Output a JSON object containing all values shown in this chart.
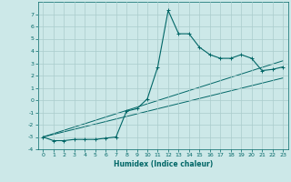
{
  "xlabel": "Humidex (Indice chaleur)",
  "background_color": "#cce8e8",
  "grid_color": "#aacccc",
  "line_color": "#006666",
  "xlim": [
    -0.5,
    23.5
  ],
  "ylim": [
    -4,
    8
  ],
  "yticks": [
    -4,
    -3,
    -2,
    -1,
    0,
    1,
    2,
    3,
    4,
    5,
    6,
    7
  ],
  "xticks": [
    0,
    1,
    2,
    3,
    4,
    5,
    6,
    7,
    8,
    9,
    10,
    11,
    12,
    13,
    14,
    15,
    16,
    17,
    18,
    19,
    20,
    21,
    22,
    23
  ],
  "main_x": [
    0,
    1,
    2,
    3,
    4,
    5,
    6,
    7,
    8,
    9,
    10,
    11,
    12,
    13,
    14,
    15,
    16,
    17,
    18,
    19,
    20,
    21,
    22,
    23
  ],
  "main_y": [
    -3.0,
    -3.3,
    -3.3,
    -3.2,
    -3.2,
    -3.2,
    -3.1,
    -3.0,
    -0.9,
    -0.7,
    0.1,
    2.7,
    7.3,
    5.4,
    5.4,
    4.3,
    3.7,
    3.4,
    3.4,
    3.7,
    3.4,
    2.4,
    2.5,
    2.7
  ],
  "line1_x": [
    0,
    23
  ],
  "line1_y": [
    -3.0,
    3.2
  ],
  "line2_x": [
    0,
    23
  ],
  "line2_y": [
    -3.0,
    1.8
  ]
}
